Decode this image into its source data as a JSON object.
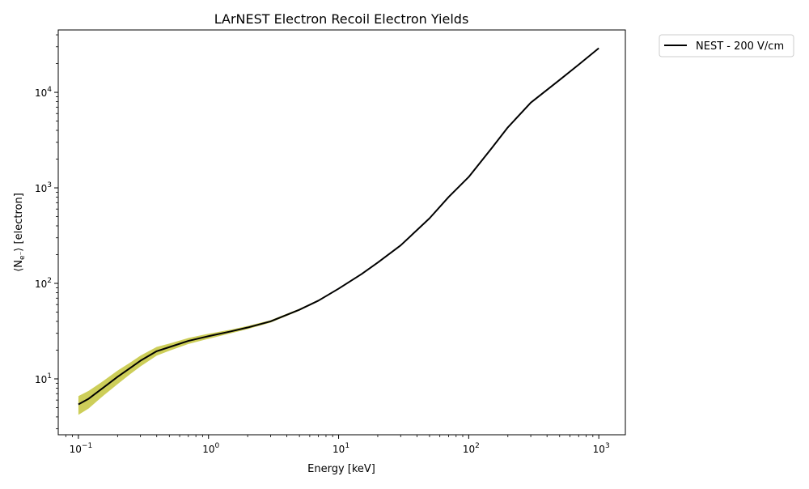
{
  "chart_data": {
    "type": "line",
    "title": "LArNEST Electron Recoil Electron Yields",
    "xlabel": "Energy [keV]",
    "ylabel": "⟨N",
    "ylabel_sub": "e⁻",
    "ylabel_tail": "⟩ [electron]",
    "x_scale": "log",
    "y_scale": "log",
    "xlim": [
      0.07,
      1600
    ],
    "ylim": [
      2.6,
      45000
    ],
    "grid": false,
    "legend_position": "outside-top-right",
    "x_ticks": [
      {
        "value": 0.1,
        "base": "10",
        "exp": "−1"
      },
      {
        "value": 1,
        "base": "10",
        "exp": "0"
      },
      {
        "value": 10,
        "base": "10",
        "exp": "1"
      },
      {
        "value": 100,
        "base": "10",
        "exp": "2"
      },
      {
        "value": 1000,
        "base": "10",
        "exp": "3"
      }
    ],
    "y_ticks": [
      {
        "value": 10,
        "base": "10",
        "exp": "1"
      },
      {
        "value": 100,
        "base": "10",
        "exp": "2"
      },
      {
        "value": 1000,
        "base": "10",
        "exp": "3"
      },
      {
        "value": 10000,
        "base": "10",
        "exp": "4"
      }
    ],
    "series": [
      {
        "name": "NEST - 200 V/cm",
        "color": "#000000",
        "band_color": "#bcbd22",
        "x": [
          0.1,
          0.12,
          0.15,
          0.2,
          0.25,
          0.3,
          0.4,
          0.5,
          0.7,
          1,
          1.5,
          2,
          3,
          5,
          7,
          10,
          15,
          20,
          30,
          50,
          70,
          100,
          150,
          200,
          300,
          500,
          700,
          1000
        ],
        "y": [
          5.4,
          6.2,
          7.8,
          10.5,
          13,
          15.5,
          19.5,
          21.5,
          25,
          28,
          31.5,
          34.5,
          40,
          53,
          66,
          88,
          125,
          165,
          250,
          480,
          800,
          1300,
          2600,
          4300,
          7800,
          13500,
          19500,
          29000
        ],
        "band_lower": [
          4.2,
          4.9,
          6.4,
          8.8,
          11.2,
          13.5,
          17.5,
          19.7,
          23.2,
          26.3,
          30.1,
          33.2,
          38.8,
          51.8,
          64.8,
          86.6,
          123.4,
          163.2,
          247.5,
          476,
          795,
          1293,
          2590,
          4288,
          7785,
          13480,
          19470,
          28950
        ],
        "band_upper": [
          6.6,
          7.5,
          9.2,
          12.2,
          14.8,
          17.5,
          21.6,
          23.4,
          26.8,
          29.7,
          32.9,
          35.8,
          41.2,
          54.2,
          67.2,
          89.4,
          126.6,
          166.8,
          252.5,
          484,
          805,
          1307,
          2610,
          4312,
          7815,
          13520,
          19530,
          29050
        ]
      }
    ]
  }
}
